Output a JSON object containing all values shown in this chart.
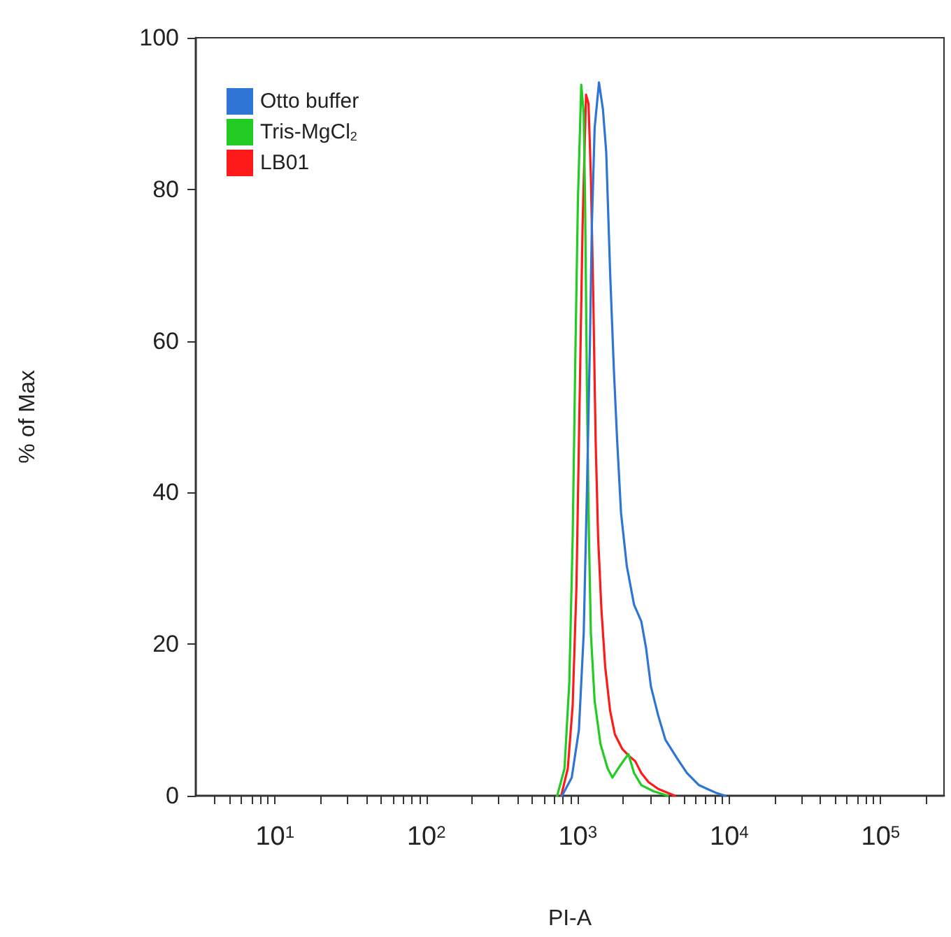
{
  "chart_data": {
    "type": "line",
    "xlabel": "PI-A",
    "ylabel": "% of Max",
    "log": "x",
    "grid": false,
    "legend": "top left",
    "marker": "none",
    "line_style": "solid",
    "xlim": [
      3,
      262144
    ],
    "ylim": [
      0,
      100
    ],
    "yticks": [
      0,
      20,
      40,
      60,
      80,
      100
    ],
    "xticks": [
      {
        "value": 4,
        "label": null
      },
      {
        "value": 5,
        "label": null
      },
      {
        "value": 6,
        "label": null
      },
      {
        "value": 7,
        "label": null
      },
      {
        "value": 8,
        "label": null
      },
      {
        "value": 9,
        "label": null
      },
      {
        "value": 10,
        "label": "10$^{1}$"
      },
      {
        "value": 20,
        "label": null
      },
      {
        "value": 30,
        "label": null
      },
      {
        "value": 40,
        "label": null
      },
      {
        "value": 50,
        "label": null
      },
      {
        "value": 60,
        "label": null
      },
      {
        "value": 70,
        "label": null
      },
      {
        "value": 80,
        "label": null
      },
      {
        "value": 90,
        "label": null
      },
      {
        "value": 100,
        "label": "10$^{2}$"
      },
      {
        "value": 200,
        "label": null
      },
      {
        "value": 300,
        "label": null
      },
      {
        "value": 400,
        "label": null
      },
      {
        "value": 500,
        "label": null
      },
      {
        "value": 600,
        "label": null
      },
      {
        "value": 700,
        "label": null
      },
      {
        "value": 800,
        "label": null
      },
      {
        "value": 900,
        "label": null
      },
      {
        "value": 1000,
        "label": "10$^{3}$"
      },
      {
        "value": 2000,
        "label": null
      },
      {
        "value": 3000,
        "label": null
      },
      {
        "value": 4000,
        "label": null
      },
      {
        "value": 5000,
        "label": null
      },
      {
        "value": 6000,
        "label": null
      },
      {
        "value": 7000,
        "label": null
      },
      {
        "value": 8000,
        "label": null
      },
      {
        "value": 9000,
        "label": null
      },
      {
        "value": 10000,
        "label": "10$^{4}$"
      },
      {
        "value": 20000,
        "label": null
      },
      {
        "value": 30000,
        "label": null
      },
      {
        "value": 40000,
        "label": null
      },
      {
        "value": 50000,
        "label": null
      },
      {
        "value": 60000,
        "label": null
      },
      {
        "value": 70000,
        "label": null
      },
      {
        "value": 80000,
        "label": null
      },
      {
        "value": 90000,
        "label": null
      },
      {
        "value": 100000,
        "label": "10$^{5}$"
      },
      {
        "value": 200000,
        "label": null
      }
    ],
    "series": [
      {
        "name": "Otto buffer",
        "color": "#2e75d6",
        "x": [
          787,
          912,
          1017,
          1094,
          1150,
          1202,
          1239,
          1292,
          1380,
          1465,
          1541,
          1635,
          1730,
          1820,
          1930,
          2107,
          2353,
          2627,
          2823,
          3041,
          3396,
          3788,
          4539,
          5253,
          6310,
          8147,
          9419
        ],
        "values": [
          0,
          2.4,
          8.7,
          21.4,
          40.5,
          59.5,
          75.4,
          88.1,
          94.1,
          90.6,
          84.9,
          69,
          56.3,
          46.8,
          37.3,
          30.3,
          25.2,
          23,
          19.5,
          14.4,
          10.6,
          7.4,
          4.9,
          3,
          1.4,
          0.4,
          0
        ]
      },
      {
        "name": "Tris-MgCl$_{2}$",
        "color": "#22cc22",
        "x": [
          731,
          817,
          879,
          925,
          966,
          1002,
          1054,
          1094,
          1117,
          1150,
          1185,
          1220,
          1292,
          1413,
          1574,
          1694,
          1892,
          2158,
          2353,
          2627,
          3155,
          3930
        ],
        "values": [
          0,
          3.6,
          15,
          34.1,
          59.5,
          78.6,
          93.8,
          90,
          78.6,
          53.1,
          34.1,
          21.4,
          12.5,
          6.8,
          3.6,
          2.4,
          3.9,
          5.5,
          3,
          1.4,
          0.6,
          0
        ]
      },
      {
        "name": "LB01",
        "color": "#ff1a1a",
        "x": [
          777,
          859,
          925,
          980,
          1030,
          1076,
          1133,
          1177,
          1220,
          1265,
          1312,
          1362,
          1432,
          1517,
          1635,
          1758,
          1963,
          2193,
          2388,
          2627,
          2931,
          3396,
          4375
        ],
        "values": [
          0,
          3.6,
          11.9,
          27.7,
          53.1,
          75.4,
          92.5,
          91.3,
          81.7,
          65.9,
          46.8,
          34.1,
          24.6,
          17,
          11.2,
          8.1,
          6.2,
          5.2,
          4.6,
          3,
          1.8,
          0.9,
          0
        ]
      }
    ]
  }
}
